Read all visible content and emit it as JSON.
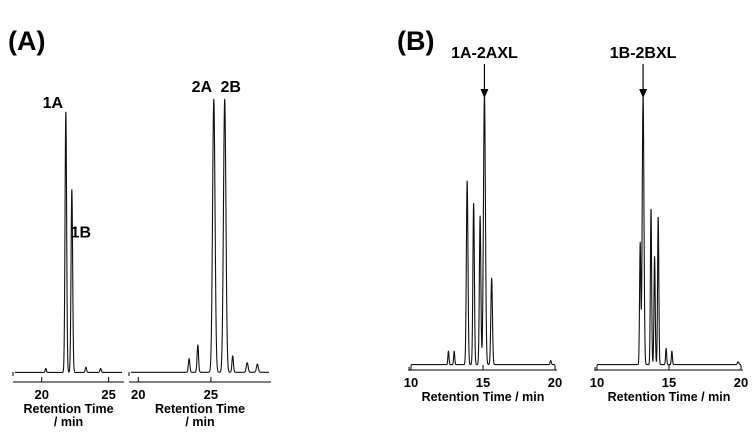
{
  "chart_data": [
    {
      "type": "line",
      "panel_label": "(A)",
      "xlabel": [
        "Retention Time",
        "/ min"
      ],
      "xlim": [
        18,
        26
      ],
      "ticks": [
        20,
        25
      ],
      "tick_labels": [
        "20",
        "25"
      ],
      "baseline": 0.01,
      "peaks": [
        {
          "name": "1A",
          "rt": 21.8,
          "height": 1.0,
          "width": 0.14
        },
        {
          "name": "1B",
          "rt": 22.25,
          "height": 0.7,
          "width": 0.14
        }
      ],
      "minor_peaks": [
        {
          "rt": 20.3,
          "height": 0.015,
          "width": 0.1
        },
        {
          "rt": 23.3,
          "height": 0.02,
          "width": 0.12
        },
        {
          "rt": 24.4,
          "height": 0.015,
          "width": 0.12
        }
      ]
    },
    {
      "type": "line",
      "panel_label": "",
      "xlabel": [
        "Retention Time",
        "/ min"
      ],
      "xlim": [
        19.5,
        29
      ],
      "ticks": [
        20,
        25
      ],
      "tick_labels": [
        "20",
        "25"
      ],
      "baseline": 0.01,
      "peaks": [
        {
          "name": "2A",
          "rt": 25.2,
          "height": 1.0,
          "width": 0.2
        },
        {
          "name": "2B",
          "rt": 25.95,
          "height": 1.0,
          "width": 0.2
        }
      ],
      "minor_peaks": [
        {
          "rt": 23.5,
          "height": 0.05,
          "width": 0.12
        },
        {
          "rt": 24.1,
          "height": 0.1,
          "width": 0.12
        },
        {
          "rt": 26.5,
          "height": 0.06,
          "width": 0.12
        },
        {
          "rt": 27.5,
          "height": 0.035,
          "width": 0.15
        },
        {
          "rt": 28.2,
          "height": 0.03,
          "width": 0.15
        }
      ]
    },
    {
      "type": "line",
      "panel_label": "(B)",
      "xlabel": [
        "Retention Time / min"
      ],
      "xlim": [
        10,
        20
      ],
      "ticks": [
        10,
        15,
        20
      ],
      "tick_labels": [
        "10",
        "15",
        "20"
      ],
      "baseline": 0.02,
      "annotation": {
        "label": "1A-2AXL",
        "rt": 15.1
      },
      "peaks": [
        {
          "rt": 13.9,
          "height": 0.68,
          "width": 0.13
        },
        {
          "rt": 14.35,
          "height": 0.6,
          "width": 0.12
        },
        {
          "rt": 14.8,
          "height": 0.55,
          "width": 0.12
        },
        {
          "rt": 15.1,
          "height": 1.0,
          "width": 0.16
        },
        {
          "rt": 15.6,
          "height": 0.32,
          "width": 0.13
        }
      ],
      "minor_peaks": [
        {
          "rt": 12.6,
          "height": 0.05,
          "width": 0.09
        },
        {
          "rt": 13.0,
          "height": 0.05,
          "width": 0.09
        },
        {
          "rt": 19.7,
          "height": 0.015,
          "width": 0.1
        }
      ]
    },
    {
      "type": "line",
      "panel_label": "",
      "xlabel": [
        "Retention Time / min"
      ],
      "xlim": [
        10,
        20
      ],
      "ticks": [
        10,
        15,
        20
      ],
      "tick_labels": [
        "10",
        "15",
        "20"
      ],
      "baseline": 0.02,
      "annotation": {
        "label": "1B-2BXL",
        "rt": 13.2
      },
      "peaks": [
        {
          "rt": 13.0,
          "height": 0.45,
          "width": 0.1
        },
        {
          "rt": 13.2,
          "height": 1.0,
          "width": 0.14
        },
        {
          "rt": 13.75,
          "height": 0.58,
          "width": 0.1
        },
        {
          "rt": 14.0,
          "height": 0.4,
          "width": 0.1
        },
        {
          "rt": 14.25,
          "height": 0.55,
          "width": 0.1
        }
      ],
      "minor_peaks": [
        {
          "rt": 14.8,
          "height": 0.06,
          "width": 0.09
        },
        {
          "rt": 15.2,
          "height": 0.05,
          "width": 0.09
        },
        {
          "rt": 19.8,
          "height": 0.01,
          "width": 0.12
        }
      ]
    }
  ]
}
